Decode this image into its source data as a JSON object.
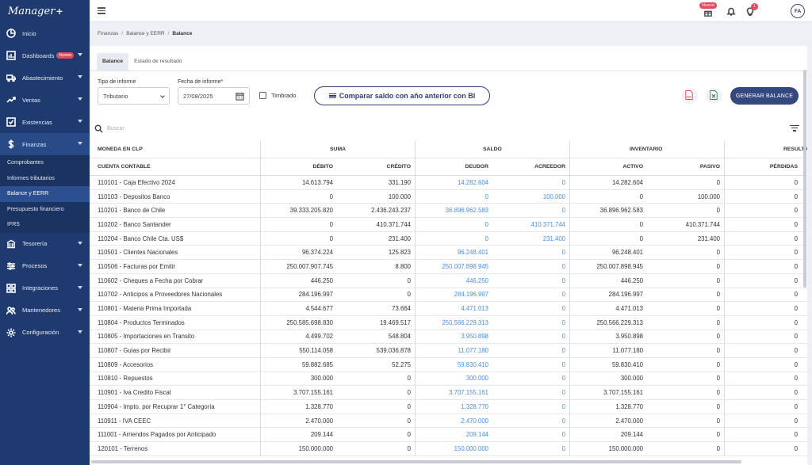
{
  "app": {
    "logo": "Manager",
    "logo_plus": "+"
  },
  "sidebar": {
    "items": [
      {
        "label": "Inicio",
        "icon": "clock-icon"
      },
      {
        "label": "Dashboards",
        "badge": "Nuevo",
        "icon": "chart-icon"
      },
      {
        "label": "Abastecimiento",
        "icon": "truck-icon"
      },
      {
        "label": "Ventas",
        "icon": "trend-icon"
      },
      {
        "label": "Existencias",
        "icon": "check-square-icon"
      },
      {
        "label": "Finanzas",
        "icon": "dollar-icon"
      }
    ],
    "finanzas_sub": [
      "Comprobantes",
      "Informes tributarios",
      "Balance y EERR",
      "Presupuesto financiero",
      "IFRS"
    ],
    "items_after": [
      {
        "label": "Tesorería",
        "icon": "bank-icon"
      },
      {
        "label": "Procesos",
        "icon": "sliders-icon"
      },
      {
        "label": "Integraciones",
        "icon": "grid-icon"
      },
      {
        "label": "Mantenedores",
        "icon": "users-icon"
      },
      {
        "label": "Configuración",
        "icon": "gear-icon"
      }
    ]
  },
  "topbar": {
    "new_badge": "Nuevo",
    "notif_count": "1",
    "avatar": "FA"
  },
  "breadcrumb": [
    "Finanzas",
    "Balance y EERR",
    "Balance"
  ],
  "tabs": [
    "Balance",
    "Estado de resultado"
  ],
  "form": {
    "tipo_label": "Tipo de informe",
    "tipo_value": "Tributario",
    "fecha_label": "Fecha de informe*",
    "fecha_value": "27/08/2025",
    "timbrado_label": "Timbrado",
    "compare_label": "Comparar saldo con año anterior con BI",
    "pdf_label": "PDF",
    "generate_label": "GENERAR BALANCE"
  },
  "search": {
    "placeholder": "Buscar"
  },
  "table": {
    "group_headers": [
      "MONEDA EN CLP",
      "SUMA",
      "SALDO",
      "INVENTARIO",
      "RESULTA"
    ],
    "columns": [
      "CUENTA CONTABLE",
      "DÉBITO",
      "CRÉDITO",
      "DEUDOR",
      "ACREEDOR",
      "ACTIVO",
      "PASIVO",
      "PÉRDIDAS"
    ],
    "rows": [
      [
        "110101 - Caja Efectivo 2024",
        "14.613.794",
        "331.190",
        "14.282.604",
        "0",
        "14.282.604",
        "0",
        "0"
      ],
      [
        "110103 - Depositos Banco",
        "0",
        "100.000",
        "0",
        "100.000",
        "0",
        "100.000",
        "0"
      ],
      [
        "110201 - Banco de Chile",
        "39.333.205.820",
        "2.436.243.237",
        "36.896.962.583",
        "0",
        "36.896.962.583",
        "0",
        "0"
      ],
      [
        "110202 - Banco Santander",
        "0",
        "410.371.744",
        "0",
        "410.371.744",
        "0",
        "410.371.744",
        "0"
      ],
      [
        "110204 - Banco Chile Cta. US$",
        "0",
        "231.400",
        "0",
        "231.400",
        "0",
        "231.400",
        "0"
      ],
      [
        "110501 - Clientes Nacionales",
        "96.374.224",
        "125.823",
        "96.248.401",
        "0",
        "96.248.401",
        "0",
        "0"
      ],
      [
        "110506 - Facturas por Emitir",
        "250.007.907.745",
        "8.800",
        "250.007.898.945",
        "0",
        "250.007.898.945",
        "0",
        "0"
      ],
      [
        "110602 - Cheques a Fecha por Cobrar",
        "446.250",
        "0",
        "446.250",
        "0",
        "446.250",
        "0",
        "0"
      ],
      [
        "110702 - Anticipos a Proveedores Nacionales",
        "284.196.997",
        "0",
        "284.196.997",
        "0",
        "284.196.997",
        "0",
        "0"
      ],
      [
        "110801 - Materia Prima Importada",
        "4.544.677",
        "73.664",
        "4.471.013",
        "0",
        "4.471.013",
        "0",
        "0"
      ],
      [
        "110804 - Productos Terminados",
        "250.585.698.830",
        "19.469.517",
        "250.566.229.313",
        "0",
        "250.566.229.313",
        "0",
        "0"
      ],
      [
        "110805 - Importaciones en Transito",
        "4.499.702",
        "548.804",
        "3.950.898",
        "0",
        "3.950.898",
        "0",
        "0"
      ],
      [
        "110807 - Guias por Recibir",
        "550.114.058",
        "539.036.878",
        "11.077.180",
        "0",
        "11.077.180",
        "0",
        "0"
      ],
      [
        "110809 - Accesorios",
        "59.882.685",
        "52.275",
        "59.830.410",
        "0",
        "59.830.410",
        "0",
        "0"
      ],
      [
        "110810 - Repuestos",
        "300.000",
        "0",
        "300.000",
        "0",
        "300.000",
        "0",
        "0"
      ],
      [
        "110901 - Iva Credito Fiscal",
        "3.707.155.161",
        "0",
        "3.707.155.161",
        "0",
        "3.707.155.161",
        "0",
        "0"
      ],
      [
        "110904 - Impto. por Recuprar 1° Categoría",
        "1.328.770",
        "0",
        "1.328.770",
        "0",
        "1.328.770",
        "0",
        "0"
      ],
      [
        "110911 - IVA CEEC",
        "2.470.000",
        "0",
        "2.470.000",
        "0",
        "2.470.000",
        "0",
        "0"
      ],
      [
        "111001 - Arriendos Pagados por Anticipado",
        "209.144",
        "0",
        "209.144",
        "0",
        "209.144",
        "0",
        "0"
      ],
      [
        "120101 - Terrenos",
        "150.000.000",
        "0",
        "150.000.000",
        "0",
        "150.000.000",
        "0",
        "0"
      ]
    ]
  },
  "colors": {
    "sidebar": "#1e3a6e",
    "primary": "#34477f",
    "link_blue": "#4a8fe0",
    "badge_red": "#e34b5c"
  }
}
